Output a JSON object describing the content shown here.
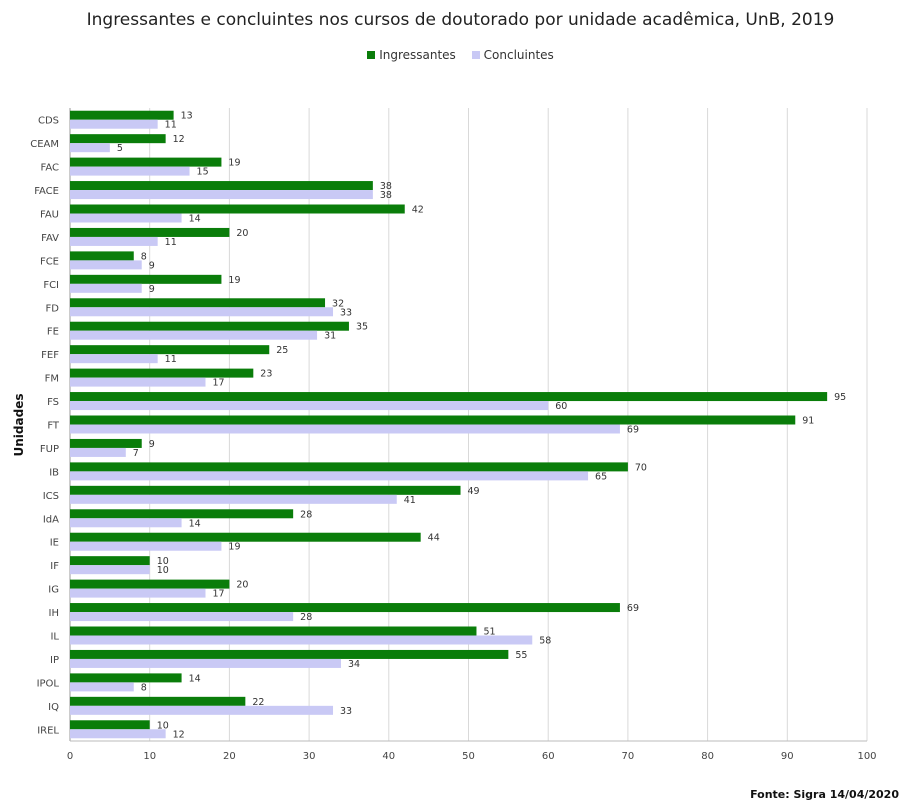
{
  "chart_data": {
    "type": "bar",
    "orientation": "horizontal",
    "title": "Ingressantes e concluintes nos cursos de doutorado por unidade acadêmica, UnB, 2019",
    "ylabel": "Unidades",
    "xlabel": "",
    "xlim": [
      0,
      100
    ],
    "xticks": [
      0,
      10,
      20,
      30,
      40,
      50,
      60,
      70,
      80,
      90,
      100
    ],
    "grid": "vertical",
    "legend_position": "top",
    "categories": [
      "CDS",
      "CEAM",
      "FAC",
      "FACE",
      "FAU",
      "FAV",
      "FCE",
      "FCI",
      "FD",
      "FE",
      "FEF",
      "FM",
      "FS",
      "FT",
      "FUP",
      "IB",
      "ICS",
      "IdA",
      "IE",
      "IF",
      "IG",
      "IH",
      "IL",
      "IP",
      "IPOL",
      "IQ",
      "IREL"
    ],
    "series": [
      {
        "name": "Ingressantes",
        "color": "#0a7d0a",
        "values": [
          13,
          12,
          19,
          38,
          42,
          20,
          8,
          19,
          32,
          35,
          25,
          23,
          95,
          91,
          9,
          70,
          49,
          28,
          44,
          10,
          20,
          69,
          51,
          55,
          14,
          22,
          10
        ]
      },
      {
        "name": "Concluintes",
        "color": "#c9c9f5",
        "values": [
          11,
          5,
          15,
          38,
          14,
          11,
          9,
          9,
          33,
          31,
          11,
          17,
          60,
          69,
          7,
          65,
          41,
          14,
          19,
          10,
          17,
          28,
          58,
          34,
          8,
          33,
          12
        ]
      }
    ],
    "source": "Fonte: Sigra 14/04/2020"
  }
}
